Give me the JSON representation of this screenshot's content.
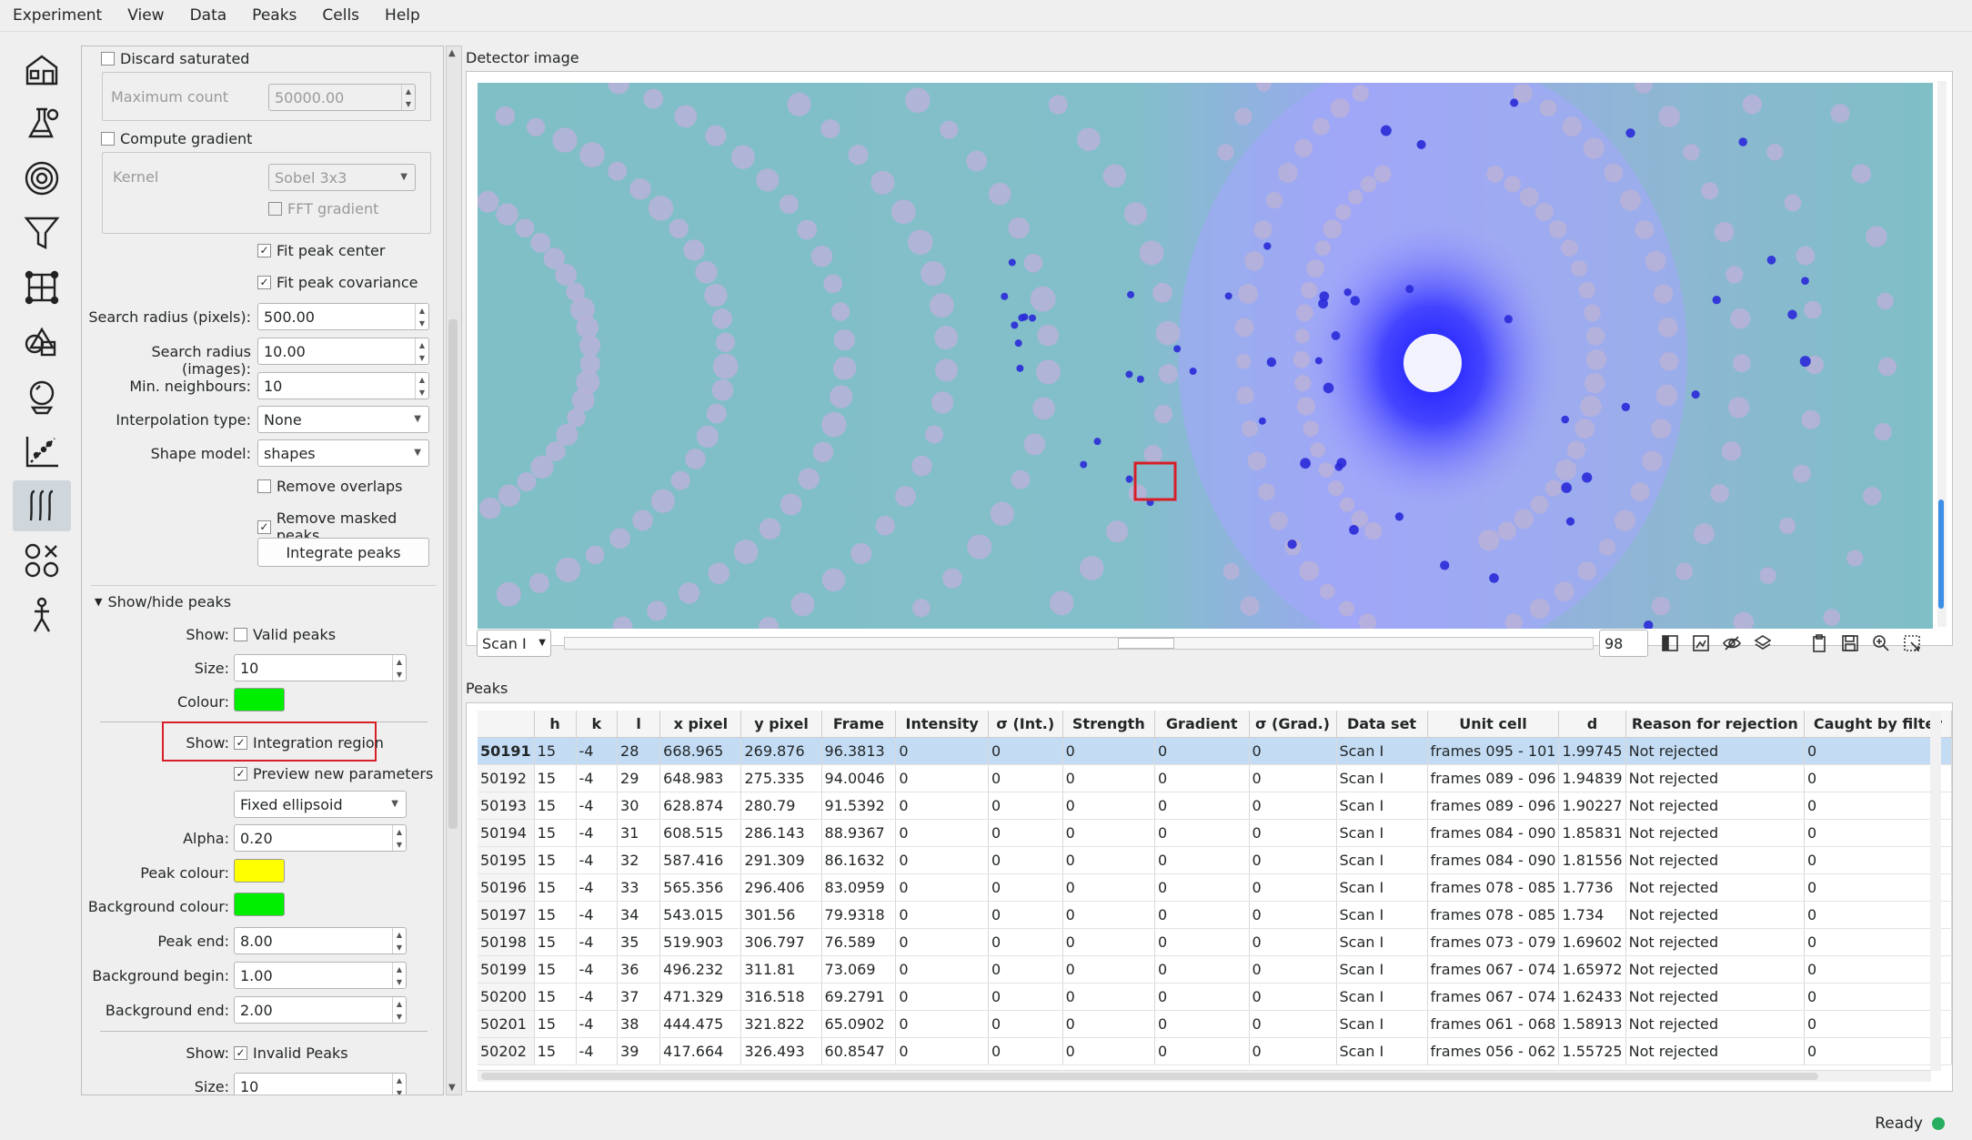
{
  "menu": [
    "Experiment",
    "View",
    "Data",
    "Peaks",
    "Cells",
    "Help"
  ],
  "toolbar": [
    "home-icon",
    "flask-icon",
    "target-icon",
    "filter-icon",
    "lattice-icon",
    "shapes-icon",
    "crystal-icon",
    "refine-icon",
    "integrate-icon",
    "rejection-icon",
    "person-icon"
  ],
  "left": {
    "discard_saturated": "Discard saturated",
    "max_count_label": "Maximum count",
    "max_count_value": "50000.00",
    "compute_gradient": "Compute gradient",
    "kernel_label": "Kernel",
    "kernel_value": "Sobel 3x3",
    "fft_gradient": "FFT gradient",
    "fit_peak_center": "Fit peak center",
    "fit_peak_covariance": "Fit peak covariance",
    "search_radius_px_label": "Search radius (pixels):",
    "search_radius_px_value": "500.00",
    "search_radius_img_label": "Search radius (images):",
    "search_radius_img_value": "10.00",
    "min_neigh_label": "Min. neighbours:",
    "min_neigh_value": "10",
    "interp_label": "Interpolation type:",
    "interp_value": "None",
    "shape_model_label": "Shape model:",
    "shape_model_value": "shapes",
    "remove_overlaps": "Remove overlaps",
    "remove_masked": "Remove masked peaks",
    "integrate_button": "Integrate peaks",
    "showhide_title": "Show/hide peaks",
    "show_label": "Show:",
    "valid_peaks": "Valid peaks",
    "size_label": "Size:",
    "size_value": "10",
    "colour_label": "Colour:",
    "integration_region": "Integration region",
    "preview_params": "Preview new parameters",
    "region_mode": "Fixed ellipsoid",
    "alpha_label": "Alpha:",
    "alpha_value": "0.20",
    "peak_colour_label": "Peak colour:",
    "bg_colour_label": "Background colour:",
    "peak_end_label": "Peak end:",
    "peak_end_value": "8.00",
    "bg_begin_label": "Background begin:",
    "bg_begin_value": "1.00",
    "bg_end_label": "Background end:",
    "bg_end_value": "2.00",
    "invalid_peaks": "Invalid Peaks",
    "size2_value": "10",
    "colours": {
      "valid": "#00ee00",
      "peak": "#ffff00",
      "background": "#00ee00"
    }
  },
  "detector": {
    "title": "Detector image",
    "scan": "Scan I",
    "frame": "98"
  },
  "peaks": {
    "title": "Peaks",
    "columns": [
      "",
      "h",
      "k",
      "l",
      "x pixel",
      "y pixel",
      "Frame",
      "Intensity",
      "σ (Int.)",
      "Strength",
      "Gradient",
      "σ (Grad.)",
      "Data set",
      "Unit cell",
      "d",
      "Reason for rejection",
      "Caught by filter"
    ],
    "rows": [
      [
        "50191",
        "15",
        "-4",
        "28",
        "668.965",
        "269.876",
        "96.3813",
        "0",
        "0",
        "0",
        "0",
        "0",
        "Scan I",
        "frames 095 - 101",
        "1.99745",
        "Not rejected",
        "0"
      ],
      [
        "50192",
        "15",
        "-4",
        "29",
        "648.983",
        "275.335",
        "94.0046",
        "0",
        "0",
        "0",
        "0",
        "0",
        "Scan I",
        "frames 089 - 096",
        "1.94839",
        "Not rejected",
        "0"
      ],
      [
        "50193",
        "15",
        "-4",
        "30",
        "628.874",
        "280.79",
        "91.5392",
        "0",
        "0",
        "0",
        "0",
        "0",
        "Scan I",
        "frames 089 - 096",
        "1.90227",
        "Not rejected",
        "0"
      ],
      [
        "50194",
        "15",
        "-4",
        "31",
        "608.515",
        "286.143",
        "88.9367",
        "0",
        "0",
        "0",
        "0",
        "0",
        "Scan I",
        "frames 084 - 090",
        "1.85831",
        "Not rejected",
        "0"
      ],
      [
        "50195",
        "15",
        "-4",
        "32",
        "587.416",
        "291.309",
        "86.1632",
        "0",
        "0",
        "0",
        "0",
        "0",
        "Scan I",
        "frames 084 - 090",
        "1.81556",
        "Not rejected",
        "0"
      ],
      [
        "50196",
        "15",
        "-4",
        "33",
        "565.356",
        "296.406",
        "83.0959",
        "0",
        "0",
        "0",
        "0",
        "0",
        "Scan I",
        "frames 078 - 085",
        "1.7736",
        "Not rejected",
        "0"
      ],
      [
        "50197",
        "15",
        "-4",
        "34",
        "543.015",
        "301.56",
        "79.9318",
        "0",
        "0",
        "0",
        "0",
        "0",
        "Scan I",
        "frames 078 - 085",
        "1.734",
        "Not rejected",
        "0"
      ],
      [
        "50198",
        "15",
        "-4",
        "35",
        "519.903",
        "306.797",
        "76.589",
        "0",
        "0",
        "0",
        "0",
        "0",
        "Scan I",
        "frames 073 - 079",
        "1.69602",
        "Not rejected",
        "0"
      ],
      [
        "50199",
        "15",
        "-4",
        "36",
        "496.232",
        "311.81",
        "73.069",
        "0",
        "0",
        "0",
        "0",
        "0",
        "Scan I",
        "frames 067 - 074",
        "1.65972",
        "Not rejected",
        "0"
      ],
      [
        "50200",
        "15",
        "-4",
        "37",
        "471.329",
        "316.518",
        "69.2791",
        "0",
        "0",
        "0",
        "0",
        "0",
        "Scan I",
        "frames 067 - 074",
        "1.62433",
        "Not rejected",
        "0"
      ],
      [
        "50201",
        "15",
        "-4",
        "38",
        "444.475",
        "321.822",
        "65.0902",
        "0",
        "0",
        "0",
        "0",
        "0",
        "Scan I",
        "frames 061 - 068",
        "1.58913",
        "Not rejected",
        "0"
      ],
      [
        "50202",
        "15",
        "-4",
        "39",
        "417.664",
        "326.493",
        "60.8547",
        "0",
        "0",
        "0",
        "0",
        "0",
        "Scan I",
        "frames 056 - 062",
        "1.55725",
        "Not rejected",
        "0"
      ]
    ]
  },
  "status": "Ready"
}
